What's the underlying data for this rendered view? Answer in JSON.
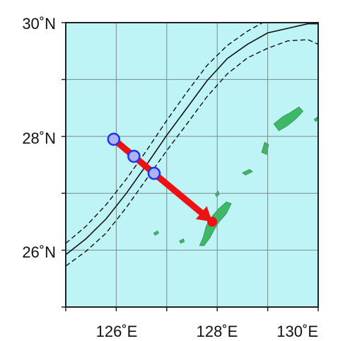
{
  "map": {
    "extent": {
      "lon_min": 125,
      "lon_max": 130,
      "lat_min": 25,
      "lat_max": 30
    },
    "graticule": {
      "lon_step": 1,
      "lat_step": 1
    },
    "ocean_color": "#bff4f6",
    "land_color": "#3cb866",
    "grid_color": "#7a8a8a",
    "frame_color": "#222222"
  },
  "axis_labels": {
    "lat": [
      {
        "lat": 30,
        "text": "30˚N"
      },
      {
        "lat": 28,
        "text": "28˚N"
      },
      {
        "lat": 26,
        "text": "26˚N"
      }
    ],
    "lon": [
      {
        "lon": 126,
        "text": "126˚E"
      },
      {
        "lon": 128,
        "text": "128˚E"
      },
      {
        "lon": 130,
        "text": "130˚E"
      }
    ]
  },
  "track": {
    "color": "#ee1111",
    "points": [
      {
        "lon": 125.95,
        "lat": 27.95
      },
      {
        "lon": 126.35,
        "lat": 27.65
      },
      {
        "lon": 126.75,
        "lat": 27.35
      },
      {
        "lon": 127.9,
        "lat": 26.5
      }
    ],
    "markers": [
      {
        "lon": 125.95,
        "lat": 27.95
      },
      {
        "lon": 126.35,
        "lat": 27.65
      },
      {
        "lon": 126.75,
        "lat": 27.35
      }
    ],
    "marker_fill": "#aab4f6",
    "marker_stroke": "#2233ee"
  },
  "kuroshio": {
    "color": "#111111",
    "axis": [
      [
        125,
        25.92
      ],
      [
        125.4,
        26.2
      ],
      [
        125.8,
        26.55
      ],
      [
        126.2,
        27.0
      ],
      [
        126.6,
        27.5
      ],
      [
        127.0,
        28.02
      ],
      [
        127.4,
        28.5
      ],
      [
        127.8,
        28.98
      ],
      [
        128.2,
        29.37
      ],
      [
        128.6,
        29.62
      ],
      [
        129.0,
        29.82
      ],
      [
        129.4,
        29.9
      ],
      [
        129.8,
        29.98
      ],
      [
        130,
        29.98
      ]
    ],
    "north": [
      [
        125,
        26.12
      ],
      [
        125.4,
        26.42
      ],
      [
        125.8,
        26.8
      ],
      [
        126.2,
        27.25
      ],
      [
        126.6,
        27.75
      ],
      [
        127.0,
        28.28
      ],
      [
        127.4,
        28.78
      ],
      [
        127.8,
        29.25
      ],
      [
        128.2,
        29.6
      ],
      [
        128.6,
        29.85
      ],
      [
        128.9,
        30
      ]
    ],
    "south": [
      [
        125,
        25.72
      ],
      [
        125.4,
        25.98
      ],
      [
        125.8,
        26.3
      ],
      [
        126.2,
        26.75
      ],
      [
        126.6,
        27.25
      ],
      [
        127.0,
        27.75
      ],
      [
        127.4,
        28.22
      ],
      [
        127.8,
        28.7
      ],
      [
        128.2,
        29.1
      ],
      [
        128.6,
        29.38
      ],
      [
        129.0,
        29.55
      ],
      [
        129.4,
        29.68
      ],
      [
        129.8,
        29.7
      ],
      [
        130,
        29.62
      ]
    ]
  },
  "islands": [
    {
      "name": "okinawa",
      "outline": [
        [
          127.65,
          26.08
        ],
        [
          127.72,
          26.22
        ],
        [
          127.78,
          26.42
        ],
        [
          127.84,
          26.52
        ],
        [
          127.92,
          26.62
        ],
        [
          128.02,
          26.72
        ],
        [
          128.18,
          26.85
        ],
        [
          128.28,
          26.82
        ],
        [
          128.18,
          26.64
        ],
        [
          128.04,
          26.5
        ],
        [
          127.94,
          26.36
        ],
        [
          127.86,
          26.22
        ],
        [
          127.74,
          26.08
        ]
      ]
    },
    {
      "name": "amami",
      "outline": [
        [
          129.12,
          28.22
        ],
        [
          129.3,
          28.35
        ],
        [
          129.45,
          28.42
        ],
        [
          129.62,
          28.52
        ],
        [
          129.7,
          28.44
        ],
        [
          129.55,
          28.3
        ],
        [
          129.38,
          28.18
        ],
        [
          129.22,
          28.1
        ]
      ]
    },
    {
      "name": "tokunoshima",
      "outline": [
        [
          128.88,
          27.72
        ],
        [
          128.94,
          27.9
        ],
        [
          129.02,
          27.86
        ],
        [
          128.98,
          27.68
        ]
      ]
    },
    {
      "name": "okinoerabu",
      "outline": [
        [
          128.5,
          27.36
        ],
        [
          128.64,
          27.42
        ],
        [
          128.7,
          27.38
        ],
        [
          128.56,
          27.32
        ]
      ]
    },
    {
      "name": "iheya",
      "outline": [
        [
          127.96,
          26.98
        ],
        [
          128.02,
          27.04
        ],
        [
          128.04,
          26.98
        ],
        [
          127.99,
          26.94
        ]
      ]
    },
    {
      "name": "kumejima",
      "outline": [
        [
          126.74,
          26.3
        ],
        [
          126.82,
          26.34
        ],
        [
          126.84,
          26.3
        ],
        [
          126.77,
          26.26
        ]
      ]
    },
    {
      "name": "tokashiki",
      "outline": [
        [
          127.25,
          26.16
        ],
        [
          127.33,
          26.2
        ],
        [
          127.35,
          26.15
        ],
        [
          127.28,
          26.12
        ]
      ]
    },
    {
      "name": "kikai",
      "outline": [
        [
          129.92,
          28.3
        ],
        [
          129.98,
          28.34
        ],
        [
          130,
          28.3
        ],
        [
          129.95,
          28.26
        ]
      ]
    }
  ]
}
